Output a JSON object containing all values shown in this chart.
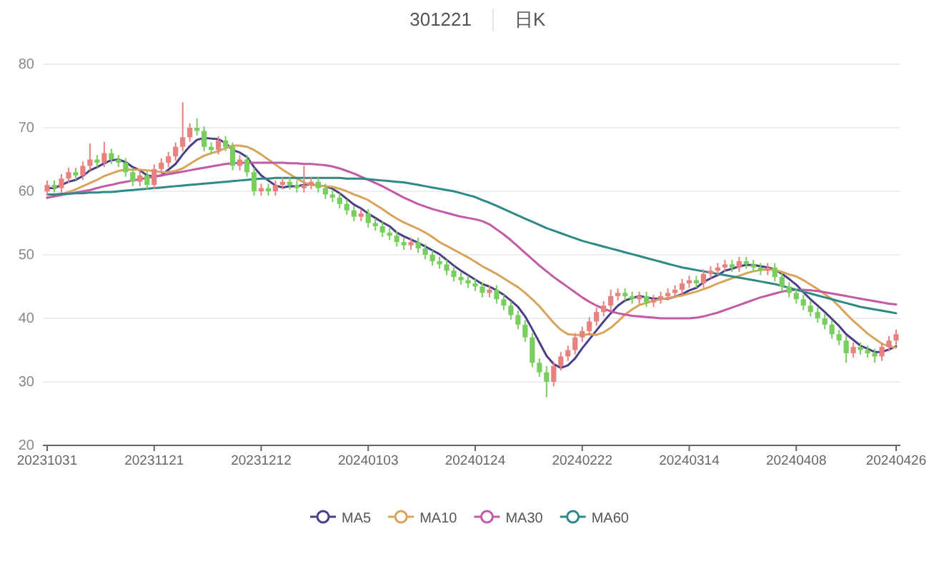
{
  "chart_data": {
    "type": "candlestick",
    "title": "301221",
    "subtitle": "日K",
    "categories": [
      "20231031",
      null,
      null,
      null,
      null,
      null,
      null,
      null,
      null,
      null,
      null,
      null,
      null,
      null,
      null,
      "20231121",
      null,
      null,
      null,
      null,
      null,
      null,
      null,
      null,
      null,
      null,
      null,
      null,
      null,
      null,
      "20231212",
      null,
      null,
      null,
      null,
      null,
      null,
      null,
      null,
      null,
      null,
      null,
      null,
      null,
      null,
      "20240103",
      null,
      null,
      null,
      null,
      null,
      null,
      null,
      null,
      null,
      null,
      null,
      null,
      null,
      null,
      "20240124",
      null,
      null,
      null,
      null,
      null,
      null,
      null,
      null,
      null,
      null,
      null,
      null,
      null,
      null,
      "20240222",
      null,
      null,
      null,
      null,
      null,
      null,
      null,
      null,
      null,
      null,
      null,
      null,
      null,
      null,
      "20240314",
      null,
      null,
      null,
      null,
      null,
      null,
      null,
      null,
      null,
      null,
      null,
      null,
      null,
      null,
      "20240408",
      null,
      null,
      null,
      null,
      null,
      null,
      null,
      null,
      null,
      null,
      null,
      null,
      null,
      "20240426"
    ],
    "colors": [
      "#e8817f",
      "#78cf5e",
      "#e8817f",
      "#e8817f",
      "#78cf5e",
      "#e8817f",
      "#e8817f",
      "#78cf5e",
      "#e8817f",
      "#78cf5e",
      "#78cf5e",
      "#78cf5e",
      "#78cf5e",
      "#e8817f",
      "#78cf5e",
      "#e8817f",
      "#e8817f",
      "#e8817f",
      "#e8817f",
      "#e8817f",
      "#e8817f",
      "#78cf5e",
      "#78cf5e",
      "#78cf5e",
      "#e8817f",
      "#78cf5e",
      "#78cf5e",
      "#e8817f",
      "#78cf5e",
      "#78cf5e",
      "#e8817f",
      "#78cf5e",
      "#e8817f",
      "#e8817f",
      "#78cf5e",
      "#78cf5e",
      "#e8817f",
      "#e8817f",
      "#78cf5e",
      "#78cf5e",
      "#78cf5e",
      "#78cf5e",
      "#78cf5e",
      "#78cf5e",
      "#e8817f",
      "#78cf5e",
      "#78cf5e",
      "#78cf5e",
      "#78cf5e",
      "#78cf5e",
      "#78cf5e",
      "#e8817f",
      "#78cf5e",
      "#78cf5e",
      "#78cf5e",
      "#78cf5e",
      "#78cf5e",
      "#78cf5e",
      "#78cf5e",
      "#78cf5e",
      "#78cf5e",
      "#78cf5e",
      "#e8817f",
      "#78cf5e",
      "#78cf5e",
      "#78cf5e",
      "#78cf5e",
      "#78cf5e",
      "#78cf5e",
      "#78cf5e",
      "#78cf5e",
      "#e8817f",
      "#e8817f",
      "#e8817f",
      "#e8817f",
      "#e8817f",
      "#e8817f",
      "#e8817f",
      "#e8817f",
      "#e8817f",
      "#e8817f",
      "#78cf5e",
      "#78cf5e",
      "#e8817f",
      "#78cf5e",
      "#e8817f",
      "#e8817f",
      "#e8817f",
      "#e8817f",
      "#e8817f",
      "#e8817f",
      "#78cf5e",
      "#e8817f",
      "#e8817f",
      "#e8817f",
      "#e8817f",
      "#78cf5e",
      "#e8817f",
      "#78cf5e",
      "#78cf5e",
      "#78cf5e",
      "#e8817f",
      "#78cf5e",
      "#78cf5e",
      "#78cf5e",
      "#78cf5e",
      "#78cf5e",
      "#78cf5e",
      "#78cf5e",
      "#78cf5e",
      "#78cf5e",
      "#78cf5e",
      "#78cf5e",
      "#e8817f",
      "#78cf5e",
      "#78cf5e",
      "#78cf5e",
      "#e8817f",
      "#e8817f",
      "#e8817f"
    ],
    "ohlc": [
      [
        60,
        61.7,
        59.3,
        61
      ],
      [
        61,
        61.7,
        59.8,
        60.5
      ],
      [
        60.5,
        62.7,
        59.8,
        62
      ],
      [
        62,
        63.7,
        61.3,
        63
      ],
      [
        63,
        63.7,
        61.8,
        62.5
      ],
      [
        62.5,
        64.7,
        61.8,
        64
      ],
      [
        64,
        67.5,
        63.3,
        65
      ],
      [
        65,
        65.7,
        63.8,
        64.5
      ],
      [
        64.5,
        67.8,
        63.8,
        66
      ],
      [
        66,
        66.7,
        64.3,
        65
      ],
      [
        65,
        65.7,
        63.8,
        64.5
      ],
      [
        64.5,
        65.2,
        62.3,
        63
      ],
      [
        63,
        63.7,
        60.8,
        61.5
      ],
      [
        61.5,
        63.2,
        60.8,
        62.5
      ],
      [
        62.5,
        63.2,
        60.3,
        61
      ],
      [
        61,
        64.2,
        60.3,
        63.5
      ],
      [
        63.5,
        65.2,
        62.8,
        64.5
      ],
      [
        64.5,
        66.2,
        63.8,
        65.5
      ],
      [
        65.5,
        67.7,
        64.8,
        67
      ],
      [
        67,
        74,
        66.3,
        68.5
      ],
      [
        68.5,
        70.7,
        67.8,
        70
      ],
      [
        70,
        71.5,
        68.8,
        69.5
      ],
      [
        69.5,
        70.2,
        66.3,
        67
      ],
      [
        67,
        67.7,
        65.8,
        66.5
      ],
      [
        66.5,
        68.7,
        65.8,
        68
      ],
      [
        68,
        68.7,
        66.3,
        67
      ],
      [
        67,
        67.7,
        63.3,
        64
      ],
      [
        64,
        65.7,
        63.3,
        65
      ],
      [
        65,
        65.7,
        62.3,
        63
      ],
      [
        63,
        63.7,
        59.3,
        60
      ],
      [
        60,
        61.2,
        59.3,
        60.5
      ],
      [
        60.5,
        61.2,
        59.3,
        60
      ],
      [
        60,
        61.7,
        59.3,
        61
      ],
      [
        61,
        62.2,
        60.3,
        61.5
      ],
      [
        61.5,
        62.2,
        60.3,
        61
      ],
      [
        61,
        61.7,
        59.8,
        60.5
      ],
      [
        60.5,
        64,
        59.8,
        61
      ],
      [
        61,
        62.2,
        60.3,
        61.5
      ],
      [
        61.5,
        62.2,
        59.8,
        60.5
      ],
      [
        60.5,
        61.2,
        58.8,
        59.5
      ],
      [
        59.5,
        60.2,
        58.3,
        59
      ],
      [
        59,
        59.7,
        57.3,
        58
      ],
      [
        58,
        58.7,
        56.3,
        57
      ],
      [
        57,
        57.7,
        55.3,
        56
      ],
      [
        56,
        57.2,
        55.3,
        56.5
      ],
      [
        56.5,
        57.2,
        54.3,
        55
      ],
      [
        55,
        55.7,
        53.8,
        54.5
      ],
      [
        54.5,
        55.2,
        52.8,
        53.5
      ],
      [
        53.5,
        54.2,
        52.3,
        53
      ],
      [
        53,
        53.7,
        51.3,
        52
      ],
      [
        52,
        52.7,
        50.8,
        51.5
      ],
      [
        51.5,
        52.7,
        50.8,
        52
      ],
      [
        52,
        52.7,
        50.3,
        51
      ],
      [
        51,
        51.7,
        49.3,
        50
      ],
      [
        50,
        50.7,
        48.3,
        49
      ],
      [
        49,
        49.7,
        47.8,
        48.5
      ],
      [
        48.5,
        49.2,
        46.8,
        47.5
      ],
      [
        47.5,
        48.2,
        45.8,
        46.5
      ],
      [
        46.5,
        47.2,
        45.3,
        46
      ],
      [
        46,
        46.7,
        44.8,
        45.5
      ],
      [
        45.5,
        46.2,
        44.3,
        45
      ],
      [
        45,
        45.7,
        43.3,
        44
      ],
      [
        44,
        45.2,
        43.3,
        44.5
      ],
      [
        44.5,
        45.2,
        42.3,
        43
      ],
      [
        43,
        43.7,
        41.3,
        42
      ],
      [
        42,
        42.7,
        39.8,
        40.5
      ],
      [
        40.5,
        41.2,
        38.3,
        39
      ],
      [
        39,
        39.7,
        36.3,
        37
      ],
      [
        37,
        37.7,
        32.3,
        33
      ],
      [
        33,
        33.7,
        30.8,
        31.5
      ],
      [
        31.5,
        32.5,
        27.6,
        30
      ],
      [
        30,
        33.2,
        29.3,
        32.5
      ],
      [
        32.5,
        34.7,
        31.8,
        34
      ],
      [
        34,
        35.7,
        33.3,
        35
      ],
      [
        35,
        37.7,
        34.3,
        37
      ],
      [
        37,
        38.7,
        36.3,
        38
      ],
      [
        38,
        40.2,
        37.3,
        39.5
      ],
      [
        39.5,
        41.7,
        38.8,
        41
      ],
      [
        41,
        42.7,
        40.3,
        42
      ],
      [
        42,
        44.5,
        41.3,
        43.5
      ],
      [
        43.5,
        44.7,
        42.8,
        44
      ],
      [
        44,
        44.7,
        42.8,
        43.5
      ],
      [
        43.5,
        44.2,
        42.3,
        43
      ],
      [
        43,
        44.2,
        42.3,
        43.5
      ],
      [
        43.5,
        44.2,
        41.8,
        42.5
      ],
      [
        42.5,
        43.7,
        41.8,
        43
      ],
      [
        43,
        44.2,
        42.3,
        43.5
      ],
      [
        43.5,
        44.7,
        42.8,
        44
      ],
      [
        44,
        45.2,
        43.3,
        44.5
      ],
      [
        44.5,
        46.2,
        43.8,
        45.5
      ],
      [
        45.5,
        46.7,
        44.8,
        46
      ],
      [
        46,
        46.7,
        44.8,
        45.5
      ],
      [
        45.5,
        47.7,
        44.8,
        47
      ],
      [
        47,
        48.2,
        46.3,
        47.5
      ],
      [
        47.5,
        48.7,
        46.8,
        48
      ],
      [
        48,
        49.2,
        47.3,
        48.5
      ],
      [
        48.5,
        49.2,
        47.3,
        48
      ],
      [
        48,
        49.7,
        47.3,
        49
      ],
      [
        49,
        49.7,
        47.8,
        48.5
      ],
      [
        48.5,
        49.2,
        47.3,
        48
      ],
      [
        48,
        48.7,
        46.8,
        47.5
      ],
      [
        47.5,
        48.7,
        46.8,
        48
      ],
      [
        48,
        48.7,
        45.8,
        46.5
      ],
      [
        46.5,
        47.2,
        44.3,
        45
      ],
      [
        45,
        45.7,
        43.3,
        44
      ],
      [
        44,
        44.7,
        42.3,
        43
      ],
      [
        43,
        43.7,
        41.3,
        42
      ],
      [
        42,
        42.7,
        40.3,
        41
      ],
      [
        41,
        41.7,
        39.3,
        40
      ],
      [
        40,
        40.7,
        38.3,
        39
      ],
      [
        39,
        39.7,
        36.8,
        37.5
      ],
      [
        37.5,
        38.2,
        35.8,
        36.5
      ],
      [
        36.5,
        37.2,
        33,
        34.5
      ],
      [
        34.5,
        36.2,
        33.8,
        35.5
      ],
      [
        35.5,
        36.2,
        34.3,
        35
      ],
      [
        35,
        35.7,
        33.8,
        34.5
      ],
      [
        34.5,
        35.2,
        33,
        34
      ],
      [
        34,
        36.2,
        33.3,
        35.5
      ],
      [
        35.5,
        37.2,
        34.8,
        36.5
      ],
      [
        36.5,
        38.2,
        35.8,
        37.5
      ]
    ],
    "series": [
      {
        "type": "line",
        "name": "MA5",
        "color": "#4b3f86",
        "values": [
          60.5,
          60.5,
          61,
          61.5,
          61.8,
          62.4,
          63.3,
          63.8,
          64.4,
          64.9,
          65,
          64.6,
          63.8,
          63.3,
          62.5,
          62.3,
          62.5,
          63.4,
          64.3,
          65.8,
          67.1,
          68.1,
          68.4,
          68.3,
          68.2,
          67.6,
          66.5,
          66.1,
          65.4,
          63.8,
          62.5,
          61.7,
          60.9,
          60.6,
          60.8,
          60.8,
          61,
          61.1,
          60.9,
          60.8,
          60.4,
          59.7,
          58.8,
          57.9,
          57.3,
          56.5,
          55.8,
          55.1,
          54.5,
          53.5,
          52.9,
          52.4,
          51.9,
          51.3,
          50.7,
          50.1,
          49.2,
          48.3,
          47.5,
          46.8,
          46.1,
          45.4,
          45,
          44.4,
          43.7,
          42.8,
          41.8,
          40.3,
          38.3,
          36.2,
          34.1,
          32.8,
          32.2,
          32.6,
          33.7,
          35.3,
          36.7,
          38.1,
          39.5,
          40.8,
          42,
          42.8,
          43.2,
          43.5,
          43.3,
          43.1,
          43.1,
          43.1,
          43.4,
          43.8,
          44.4,
          44.8,
          45.7,
          46.3,
          46.8,
          47.5,
          47.8,
          48.2,
          48.4,
          48.4,
          48.2,
          48,
          47.7,
          47,
          46.2,
          45.3,
          44.1,
          43,
          42,
          41,
          39.9,
          38.8,
          37.5,
          36.6,
          35.7,
          35.2,
          34.7,
          34.7,
          35.1,
          35.6
        ]
      },
      {
        "type": "line",
        "name": "MA10",
        "color": "#d9a35c",
        "values": [
          59,
          59.2,
          59.5,
          59.9,
          60.3,
          60.8,
          61.3,
          61.8,
          62.4,
          62.8,
          63.2,
          63.4,
          63.4,
          63.4,
          63.3,
          63.2,
          63,
          63,
          63.2,
          63.6,
          64.3,
          65,
          65.6,
          66,
          66.3,
          66.8,
          67.2,
          67.2,
          67,
          66.5,
          65.8,
          65,
          64.2,
          63.4,
          62.7,
          62,
          61.4,
          61,
          60.9,
          60.8,
          60.7,
          60.4,
          60,
          59.5,
          59.1,
          58.6,
          57.9,
          57.2,
          56.4,
          55.7,
          55.1,
          54.6,
          54.1,
          53.5,
          52.8,
          52,
          51.4,
          50.8,
          50.2,
          49.6,
          48.9,
          48.2,
          47.6,
          47,
          46.3,
          45.6,
          44.9,
          44,
          43,
          41.9,
          40.6,
          39.3,
          38.2,
          37.5,
          37.4,
          37.4,
          37.5,
          37.4,
          37.8,
          38.5,
          39.5,
          40.6,
          41.4,
          42.1,
          42.4,
          42.8,
          43,
          43.2,
          43.4,
          43.6,
          43.9,
          44.2,
          44.6,
          45,
          45.5,
          45.9,
          46.3,
          46.7,
          47.1,
          47.4,
          47.6,
          47.7,
          47.6,
          47.3,
          46.9,
          46.6,
          46,
          45.3,
          44.6,
          43.8,
          43,
          41.9,
          40.7,
          39.6,
          38.6,
          37.6,
          36.8,
          36,
          35.6,
          35.4
        ]
      },
      {
        "type": "line",
        "name": "MA30",
        "color": "#c25aa6",
        "values": [
          59,
          59.2,
          59.4,
          59.6,
          59.8,
          60,
          60.2,
          60.5,
          60.8,
          61,
          61.3,
          61.5,
          61.7,
          61.9,
          62.1,
          62.3,
          62.5,
          62.7,
          62.9,
          63.1,
          63.3,
          63.5,
          63.7,
          63.9,
          64.1,
          64.3,
          64.4,
          64.5,
          64.5,
          64.5,
          64.5,
          64.5,
          64.5,
          64.5,
          64.4,
          64.4,
          64.3,
          64.3,
          64.2,
          64.1,
          63.9,
          63.6,
          63.2,
          62.8,
          62.3,
          61.8,
          61.3,
          60.8,
          60.2,
          59.6,
          59,
          58.5,
          58,
          57.6,
          57.2,
          56.9,
          56.6,
          56.3,
          56,
          55.8,
          55.6,
          55.3,
          54.8,
          54,
          53.2,
          52.3,
          51.3,
          50.3,
          49.3,
          48.3,
          47.4,
          46.5,
          45.7,
          44.9,
          44.1,
          43.3,
          42.6,
          42,
          41.5,
          41.1,
          40.8,
          40.6,
          40.4,
          40.3,
          40.2,
          40.1,
          40,
          40,
          40,
          40,
          40,
          40.1,
          40.3,
          40.6,
          40.9,
          41.3,
          41.7,
          42.1,
          42.5,
          42.9,
          43.3,
          43.6,
          43.9,
          44.2,
          44.4,
          44.5,
          44.5,
          44.4,
          44.3,
          44.1,
          43.9,
          43.7,
          43.5,
          43.3,
          43.1,
          42.9,
          42.7,
          42.5,
          42.3,
          42.2
        ]
      },
      {
        "type": "line",
        "name": "MA60",
        "color": "#2f8a87",
        "values": [
          59.5,
          59.5,
          59.6,
          59.6,
          59.7,
          59.7,
          59.8,
          59.8,
          59.9,
          59.9,
          60,
          60.1,
          60.2,
          60.3,
          60.4,
          60.5,
          60.6,
          60.7,
          60.8,
          60.9,
          61,
          61.1,
          61.2,
          61.3,
          61.4,
          61.5,
          61.6,
          61.7,
          61.8,
          61.9,
          62,
          62,
          62.1,
          62.1,
          62.1,
          62.1,
          62.1,
          62.1,
          62.1,
          62.1,
          62.1,
          62.1,
          62,
          62,
          62,
          61.9,
          61.8,
          61.7,
          61.6,
          61.5,
          61.4,
          61.2,
          61,
          60.8,
          60.6,
          60.4,
          60.2,
          60,
          59.7,
          59.4,
          59.1,
          58.6,
          58.2,
          57.7,
          57.2,
          56.7,
          56.2,
          55.7,
          55.2,
          54.7,
          54.2,
          53.8,
          53.4,
          53,
          52.6,
          52.2,
          51.9,
          51.6,
          51.3,
          51,
          50.7,
          50.4,
          50.1,
          49.8,
          49.5,
          49.2,
          48.9,
          48.6,
          48.3,
          48,
          47.8,
          47.6,
          47.4,
          47.2,
          47,
          46.8,
          46.6,
          46.4,
          46.2,
          46,
          45.8,
          45.6,
          45.4,
          45.1,
          44.8,
          44.5,
          44.2,
          43.9,
          43.6,
          43.3,
          43,
          42.7,
          42.4,
          42.1,
          41.8,
          41.6,
          41.4,
          41.2,
          41,
          40.8
        ]
      }
    ],
    "ylim": [
      20,
      80
    ],
    "yticks": [
      20,
      30,
      40,
      50,
      60,
      70,
      80
    ],
    "grid": "y",
    "legend": "bottom"
  }
}
